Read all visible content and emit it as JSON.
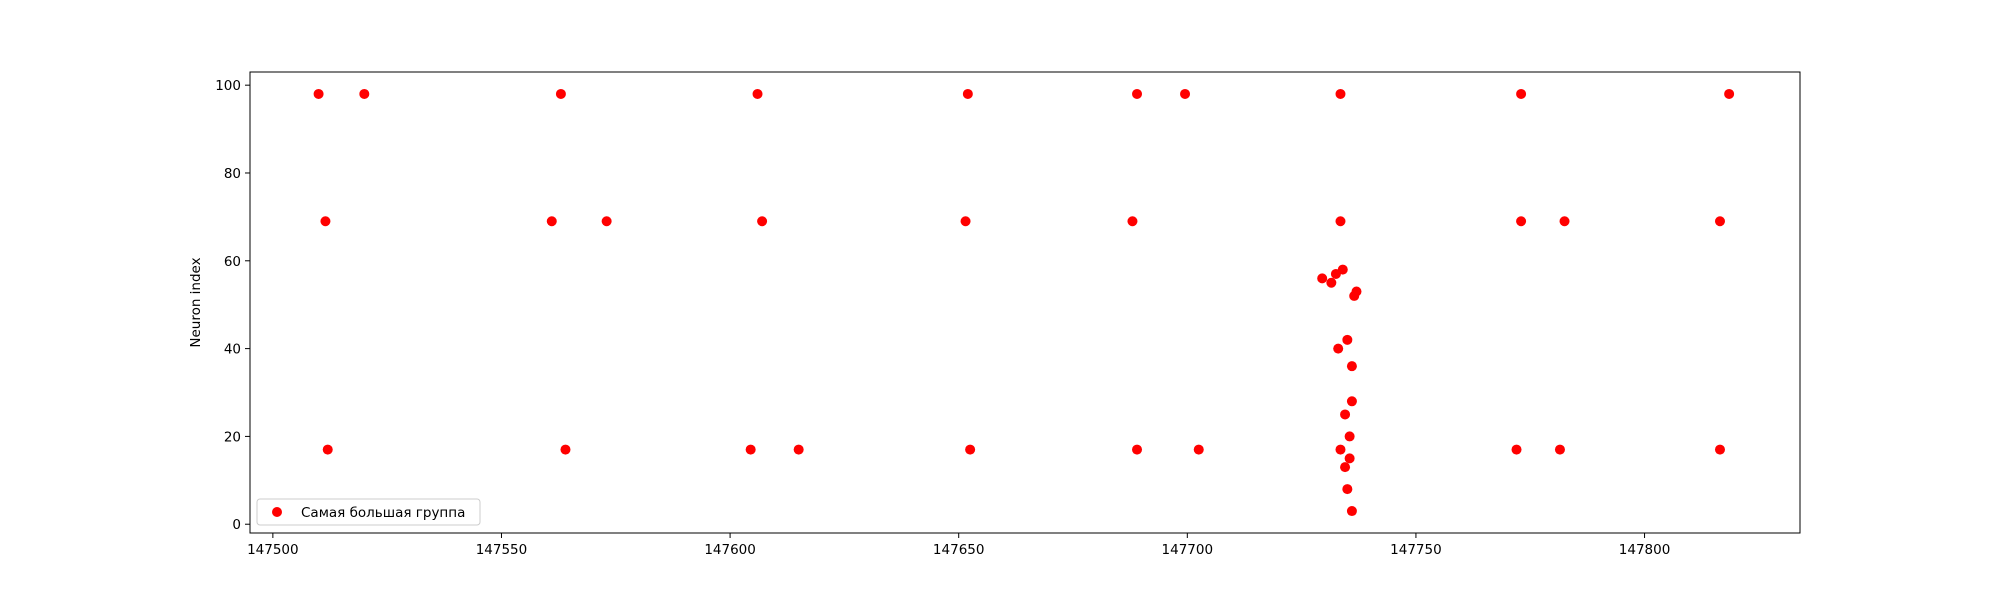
{
  "chart_data": {
    "type": "scatter",
    "title": "",
    "xlabel": "",
    "ylabel": "Neuron index",
    "xlim": [
      147495,
      147834
    ],
    "ylim": [
      -2,
      103
    ],
    "x_ticks": [
      147500,
      147550,
      147600,
      147650,
      147700,
      147750,
      147800
    ],
    "y_ticks": [
      0,
      20,
      40,
      60,
      80,
      100
    ],
    "grid": false,
    "legend_position": "lower-left",
    "series": [
      {
        "name": "Самая большая группа",
        "color": "#ff0000",
        "points": [
          [
            147510.0,
            98
          ],
          [
            147520.0,
            98
          ],
          [
            147563.0,
            98
          ],
          [
            147606.0,
            98
          ],
          [
            147652.0,
            98
          ],
          [
            147689.0,
            98
          ],
          [
            147699.5,
            98
          ],
          [
            147733.5,
            98
          ],
          [
            147773.0,
            98
          ],
          [
            147818.5,
            98
          ],
          [
            147511.5,
            69
          ],
          [
            147561.0,
            69
          ],
          [
            147573.0,
            69
          ],
          [
            147607.0,
            69
          ],
          [
            147651.5,
            69
          ],
          [
            147688.0,
            69
          ],
          [
            147733.5,
            69
          ],
          [
            147773.0,
            69
          ],
          [
            147782.5,
            69
          ],
          [
            147816.5,
            69
          ],
          [
            147512.0,
            17
          ],
          [
            147564.0,
            17
          ],
          [
            147604.5,
            17
          ],
          [
            147615.0,
            17
          ],
          [
            147652.5,
            17
          ],
          [
            147689.0,
            17
          ],
          [
            147702.5,
            17
          ],
          [
            147733.5,
            17
          ],
          [
            147772.0,
            17
          ],
          [
            147781.5,
            17
          ],
          [
            147816.5,
            17
          ],
          [
            147729.5,
            56
          ],
          [
            147731.5,
            55
          ],
          [
            147732.5,
            57
          ],
          [
            147734.0,
            58
          ],
          [
            147736.5,
            52
          ],
          [
            147737.0,
            53
          ],
          [
            147733.0,
            40
          ],
          [
            147735.0,
            42
          ],
          [
            147736.0,
            36
          ],
          [
            147736.0,
            28
          ],
          [
            147734.5,
            25
          ],
          [
            147735.5,
            20
          ],
          [
            147735.5,
            15
          ],
          [
            147734.5,
            13
          ],
          [
            147735.0,
            8
          ],
          [
            147736.0,
            3
          ]
        ]
      }
    ]
  }
}
